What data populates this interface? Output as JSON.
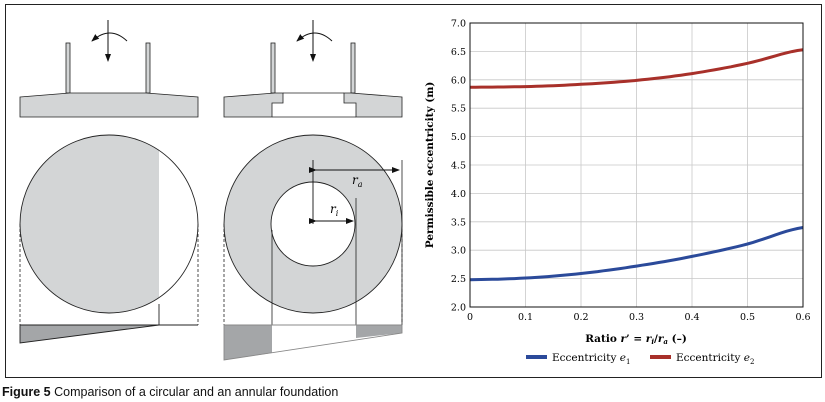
{
  "caption": {
    "label": "Figure 5",
    "text": " Comparison of a circular and an annular foundation"
  },
  "diagram": {
    "label_ra": "r",
    "label_ra_sub": "a",
    "label_ri": "r",
    "label_ri_sub": "i",
    "fill_color": "#d3d5d6",
    "pressure_color": "#a4a6a8"
  },
  "chart_data": {
    "type": "line",
    "title": "",
    "xlabel": "Ratio r' = ri/ra (–)",
    "xlabel_parts": {
      "prefix": "Ratio ",
      "r": "r",
      "prime": "’ = ",
      "ri": "r",
      "i": "i",
      "slash": "/",
      "ra": "r",
      "a": "a",
      "suffix": " (–)"
    },
    "ylabel": "Permissible eccentricity (m)",
    "xlim": [
      0,
      0.6
    ],
    "ylim": [
      2.0,
      7.0
    ],
    "xticks": [
      "0",
      "0.1",
      "0.2",
      "0.3",
      "0.4",
      "0.5",
      "0.6"
    ],
    "yticks": [
      "2.0",
      "2.5",
      "3.0",
      "3.5",
      "4.0",
      "4.5",
      "5.0",
      "5.5",
      "6.0",
      "6.5",
      "7.0"
    ],
    "grid": true,
    "legend_position": "bottom",
    "x": [
      0,
      0.1,
      0.2,
      0.3,
      0.4,
      0.5,
      0.6
    ],
    "series": [
      {
        "name": "Eccentricity e1",
        "label": "Eccentricity ",
        "sym": "e",
        "sub": "1",
        "color": "#2b4a9a",
        "values": [
          2.48,
          2.51,
          2.59,
          2.72,
          2.89,
          3.11,
          3.4
        ]
      },
      {
        "name": "Eccentricity e2",
        "label": "Eccentricity ",
        "sym": "e",
        "sub": "2",
        "color": "#a8302a",
        "values": [
          5.87,
          5.88,
          5.92,
          5.99,
          6.11,
          6.29,
          6.53
        ]
      }
    ]
  }
}
